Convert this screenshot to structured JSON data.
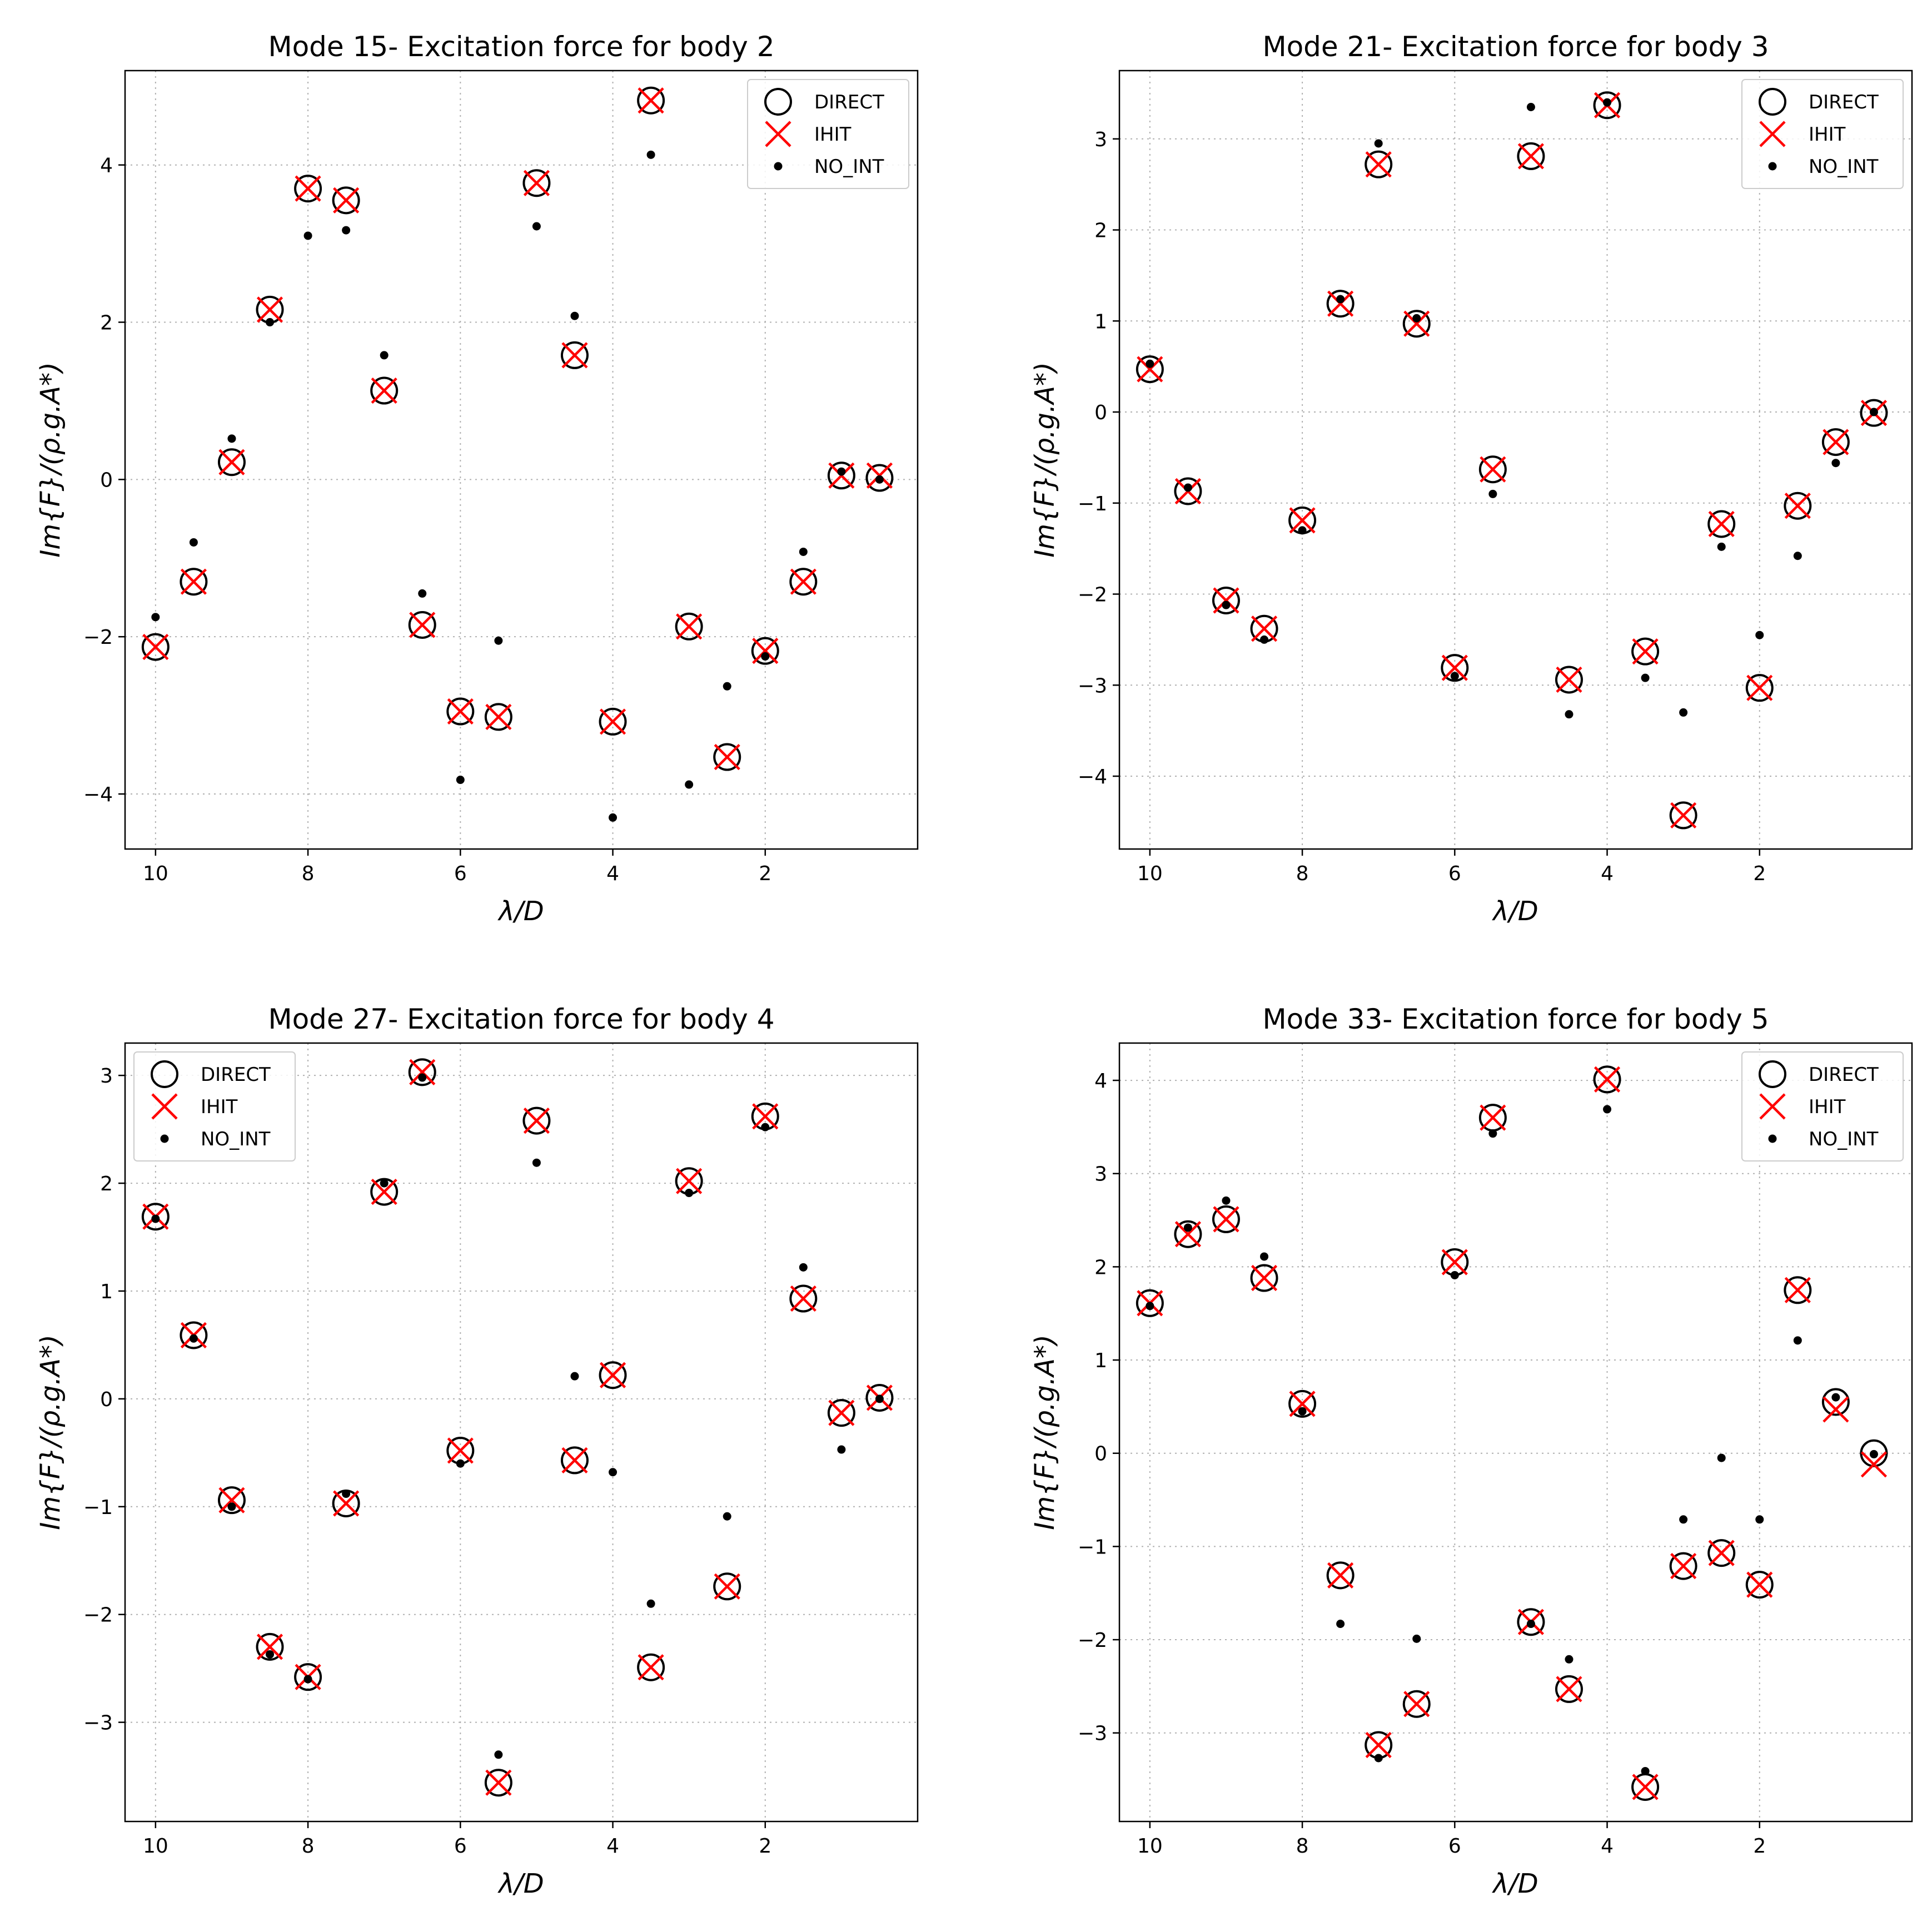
{
  "figure": {
    "colors": {
      "direct": "#000000",
      "ihit": "#ff0000",
      "no_int": "#000000",
      "grid": "#b0b0b0",
      "background": "#ffffff"
    },
    "legend_labels": [
      "DIRECT",
      "IHIT",
      "NO_INT"
    ]
  },
  "chart_data": [
    {
      "type": "scatter",
      "title": "Mode 15- Excitation force for body 2",
      "xlabel": "λ/D",
      "ylabel": "Im{F}/(ρ.g.A*)",
      "xlim": [
        10.4,
        0
      ],
      "ylim": [
        -4.7,
        5.2
      ],
      "xticks": [
        10,
        8,
        6,
        4,
        2
      ],
      "yticks": [
        -4,
        -2,
        0,
        2,
        4
      ],
      "grid": true,
      "legend_position": "top-right",
      "x": [
        10,
        9.5,
        9,
        8.5,
        8,
        7.5,
        7,
        6.5,
        6,
        5.5,
        5,
        4.5,
        4,
        3.5,
        3,
        2.5,
        2,
        1.5,
        1,
        0.5
      ],
      "series": [
        {
          "name": "DIRECT",
          "marker": "circle",
          "values": [
            -2.13,
            -1.3,
            0.22,
            2.16,
            3.7,
            3.55,
            1.13,
            -1.85,
            -2.95,
            -3.02,
            3.77,
            1.58,
            -3.08,
            4.82,
            -1.87,
            -3.53,
            -2.18,
            -1.3,
            0.05,
            0.02
          ]
        },
        {
          "name": "IHIT",
          "marker": "x",
          "values": [
            -2.13,
            -1.3,
            0.22,
            2.16,
            3.7,
            3.55,
            1.13,
            -1.85,
            -2.95,
            -3.02,
            3.77,
            1.58,
            -3.08,
            4.82,
            -1.87,
            -3.53,
            -2.18,
            -1.3,
            0.05,
            0.05
          ]
        },
        {
          "name": "NO_INT",
          "marker": "dot",
          "values": [
            -1.75,
            -0.8,
            0.52,
            2.0,
            3.1,
            3.17,
            1.58,
            -1.45,
            -3.82,
            -2.05,
            3.22,
            2.08,
            -4.3,
            4.13,
            -3.88,
            -2.63,
            -2.25,
            -0.92,
            0.1,
            0.0
          ]
        }
      ]
    },
    {
      "type": "scatter",
      "title": "Mode 21- Excitation force for body 3",
      "xlabel": "λ/D",
      "ylabel": "Im{F}/(ρ.g.A*)",
      "xlim": [
        10.4,
        0
      ],
      "ylim": [
        -4.8,
        3.75
      ],
      "xticks": [
        10,
        8,
        6,
        4,
        2
      ],
      "yticks": [
        -4,
        -3,
        -2,
        -1,
        0,
        1,
        2,
        3
      ],
      "grid": true,
      "legend_position": "top-right",
      "x": [
        10,
        9.5,
        9,
        8.5,
        8,
        7.5,
        7,
        6.5,
        6,
        5.5,
        5,
        4.5,
        4,
        3.5,
        3,
        2.5,
        2,
        1.5,
        1,
        0.5
      ],
      "series": [
        {
          "name": "DIRECT",
          "marker": "circle",
          "values": [
            0.47,
            -0.87,
            -2.07,
            -2.38,
            -1.19,
            1.19,
            2.72,
            0.97,
            -2.81,
            -0.63,
            2.81,
            -2.94,
            3.37,
            -2.63,
            -4.43,
            -1.23,
            -3.03,
            -1.03,
            -0.33,
            -0.01
          ]
        },
        {
          "name": "IHIT",
          "marker": "x",
          "values": [
            0.47,
            -0.87,
            -2.07,
            -2.38,
            -1.19,
            1.19,
            2.72,
            0.97,
            -2.81,
            -0.63,
            2.81,
            -2.94,
            3.37,
            -2.63,
            -4.43,
            -1.23,
            -3.03,
            -1.03,
            -0.33,
            -0.01
          ]
        },
        {
          "name": "NO_INT",
          "marker": "dot",
          "values": [
            0.53,
            -0.83,
            -2.12,
            -2.5,
            -1.3,
            1.24,
            2.95,
            1.03,
            -2.9,
            -0.9,
            3.35,
            -3.32,
            3.4,
            -2.92,
            -3.3,
            -1.48,
            -2.45,
            -1.58,
            -0.56,
            0.0
          ]
        }
      ]
    },
    {
      "type": "scatter",
      "title": "Mode 27- Excitation force for body 4",
      "xlabel": "λ/D",
      "ylabel": "Im{F}/(ρ.g.A*)",
      "xlim": [
        10.4,
        0
      ],
      "ylim": [
        -3.92,
        3.3
      ],
      "xticks": [
        10,
        8,
        6,
        4,
        2
      ],
      "yticks": [
        -3,
        -2,
        -1,
        0,
        1,
        2,
        3
      ],
      "grid": true,
      "legend_position": "top-left",
      "x": [
        10,
        9.5,
        9,
        8.5,
        8,
        7.5,
        7,
        6.5,
        6,
        5.5,
        5,
        4.5,
        4,
        3.5,
        3,
        2.5,
        2,
        1.5,
        1,
        0.5
      ],
      "series": [
        {
          "name": "DIRECT",
          "marker": "circle",
          "values": [
            1.69,
            0.59,
            -0.94,
            -2.3,
            -2.58,
            -0.97,
            1.92,
            3.03,
            -0.48,
            -3.56,
            2.58,
            -0.57,
            0.22,
            -2.49,
            2.02,
            -1.74,
            2.62,
            0.93,
            -0.13,
            0.01
          ]
        },
        {
          "name": "IHIT",
          "marker": "x",
          "values": [
            1.69,
            0.59,
            -0.94,
            -2.3,
            -2.58,
            -0.97,
            1.92,
            3.03,
            -0.48,
            -3.56,
            2.58,
            -0.57,
            0.22,
            -2.49,
            2.02,
            -1.74,
            2.62,
            0.93,
            -0.13,
            0.01
          ]
        },
        {
          "name": "NO_INT",
          "marker": "dot",
          "values": [
            1.67,
            0.56,
            -1.0,
            -2.37,
            -2.6,
            -0.88,
            2.0,
            2.98,
            -0.6,
            -3.3,
            2.19,
            0.21,
            -0.68,
            -1.9,
            1.91,
            -1.09,
            2.52,
            1.22,
            -0.47,
            0.0
          ]
        }
      ]
    },
    {
      "type": "scatter",
      "title": "Mode 33- Excitation force for body 5",
      "xlabel": "λ/D",
      "ylabel": "Im{F}/(ρ.g.A*)",
      "xlim": [
        10.4,
        0
      ],
      "ylim": [
        -3.95,
        4.4
      ],
      "xticks": [
        10,
        8,
        6,
        4,
        2
      ],
      "yticks": [
        -3,
        -2,
        -1,
        0,
        1,
        2,
        3,
        4
      ],
      "grid": true,
      "legend_position": "top-right",
      "x": [
        10,
        9.5,
        9,
        8.5,
        8,
        7.5,
        7,
        6.5,
        6,
        5.5,
        5,
        4.5,
        4,
        3.5,
        3,
        2.5,
        2,
        1.5,
        1,
        0.5
      ],
      "series": [
        {
          "name": "DIRECT",
          "marker": "circle",
          "values": [
            1.61,
            2.35,
            2.51,
            1.88,
            0.53,
            -1.31,
            -3.13,
            -2.69,
            2.05,
            3.6,
            -1.81,
            -2.53,
            4.01,
            -3.58,
            -1.21,
            -1.07,
            -1.41,
            1.75,
            0.55,
            0.0
          ]
        },
        {
          "name": "IHIT",
          "marker": "x",
          "values": [
            1.61,
            2.35,
            2.51,
            1.88,
            0.53,
            -1.31,
            -3.13,
            -2.69,
            2.05,
            3.6,
            -1.81,
            -2.53,
            4.01,
            -3.58,
            -1.21,
            -1.07,
            -1.41,
            1.75,
            0.47,
            -0.12
          ]
        },
        {
          "name": "NO_INT",
          "marker": "dot",
          "values": [
            1.58,
            2.42,
            2.71,
            2.11,
            0.45,
            -1.83,
            -3.27,
            -1.99,
            1.91,
            3.43,
            -1.83,
            -2.21,
            3.69,
            -3.41,
            -0.71,
            -0.05,
            -0.71,
            1.21,
            0.6,
            -0.01
          ]
        }
      ]
    }
  ]
}
